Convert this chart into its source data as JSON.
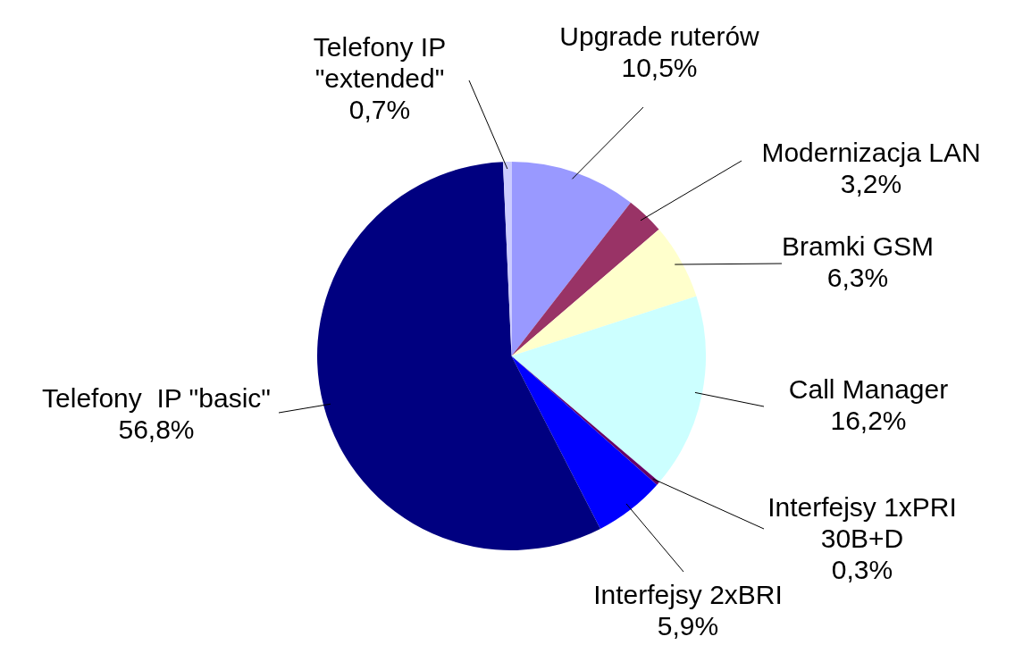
{
  "chart_data": {
    "type": "pie",
    "categories": [
      "Upgrade ruterów",
      "Modernizacja LAN",
      "Bramki GSM",
      "Call Manager",
      "Interfejsy 1xPRI\n30B+D",
      "Interfejsy 2xBRI",
      "Telefony  IP \"basic\"",
      "Telefony IP\n\"extended\""
    ],
    "values": [
      10.5,
      3.2,
      6.3,
      16.2,
      0.3,
      5.9,
      56.8,
      0.7
    ],
    "value_labels": [
      "10,5%",
      "3,2%",
      "6,3%",
      "16,2%",
      "0,3%",
      "5,9%",
      "56,8%",
      "0,7%"
    ],
    "colors": [
      "#9999ff",
      "#993366",
      "#ffffcc",
      "#ccffff",
      "#660066",
      "#0000ff",
      "#000080",
      "#ccccff"
    ],
    "legend": false
  }
}
